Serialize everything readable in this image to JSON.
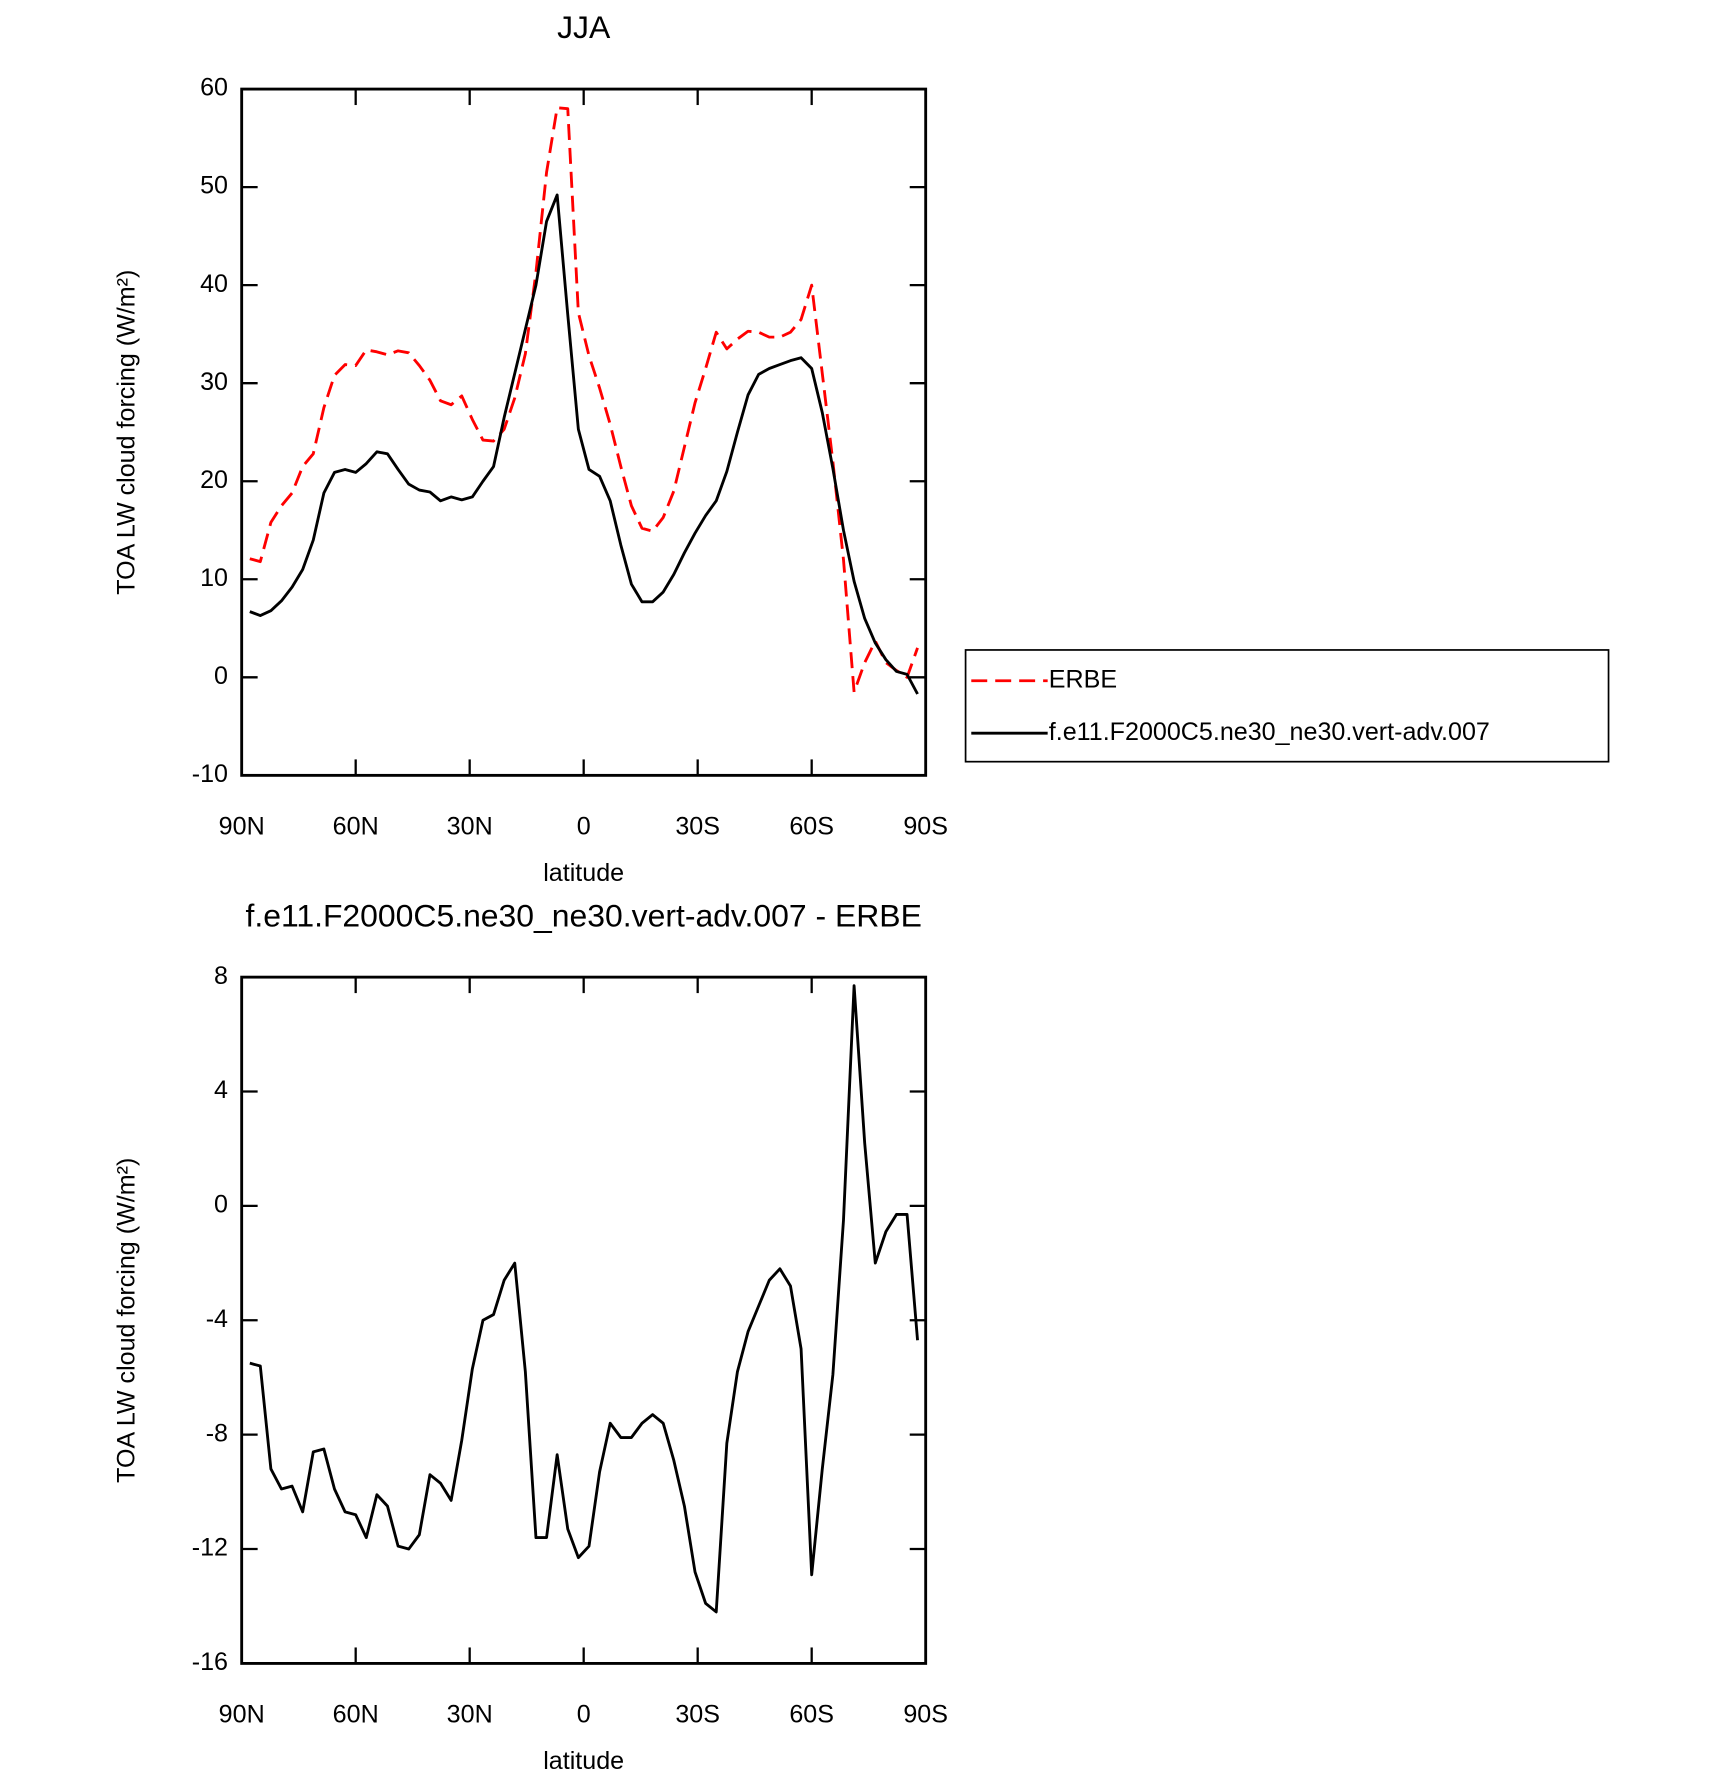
{
  "chart_data": [
    {
      "type": "line",
      "title": "JJA",
      "xlabel": "latitude",
      "ylabel": "TOA LW cloud forcing (W/m²)",
      "x": [
        87.86,
        85.1,
        82.31,
        79.53,
        76.74,
        73.95,
        71.16,
        68.37,
        65.58,
        62.79,
        60.0,
        57.21,
        54.42,
        51.63,
        48.84,
        46.04,
        43.25,
        40.46,
        37.67,
        34.88,
        32.09,
        29.3,
        26.51,
        23.72,
        20.93,
        18.14,
        15.35,
        12.56,
        9.77,
        6.98,
        4.19,
        1.4,
        -1.4,
        -4.19,
        -6.98,
        -9.77,
        -12.56,
        -15.35,
        -18.14,
        -20.93,
        -23.72,
        -26.51,
        -29.3,
        -32.09,
        -34.88,
        -37.67,
        -40.46,
        -43.25,
        -46.04,
        -48.84,
        -51.63,
        -54.42,
        -57.21,
        -60.0,
        -62.79,
        -65.58,
        -68.37,
        -71.16,
        -73.95,
        -76.74,
        -79.53,
        -82.31,
        -85.1,
        -87.86
      ],
      "series": [
        {
          "name": "ERBE",
          "color": "#ff0000",
          "style": "dashed",
          "values": [
            12.1,
            11.8,
            15.8,
            17.5,
            18.8,
            21.5,
            22.8,
            27.5,
            30.8,
            31.9,
            31.8,
            33.4,
            33.2,
            32.9,
            33.3,
            33.1,
            31.8,
            30.3,
            28.2,
            27.8,
            28.7,
            26.3,
            24.2,
            24.1,
            25.3,
            28.5,
            33,
            41.3,
            51.5,
            58.1,
            58,
            37.2,
            32.8,
            29.5,
            25.8,
            21.5,
            17.5,
            15.2,
            14.9,
            16.3,
            19,
            23.5,
            28,
            31.5,
            35.2,
            33.5,
            34.5,
            35.3,
            35.2,
            34.7,
            34.7,
            35.2,
            36.5,
            40,
            31,
            22,
            12,
            -1.5,
            1.5,
            3.7,
            1.5,
            0.7,
            0.0,
            3.0
          ]
        },
        {
          "name": "f.e11.F2000C5.ne30_ne30.vert-adv.007",
          "color": "#000000",
          "style": "solid",
          "values": [
            6.7,
            6.3,
            6.8,
            7.8,
            9.2,
            11,
            14,
            18.8,
            20.9,
            21.2,
            20.9,
            21.8,
            23.0,
            22.8,
            21.2,
            19.7,
            19.1,
            18.9,
            18.0,
            18.4,
            18.1,
            18.4,
            20.0,
            21.5,
            26.5,
            31,
            35.5,
            40,
            46.5,
            49.2,
            37,
            25.3,
            21.2,
            20.5,
            18,
            13.5,
            9.5,
            7.7,
            7.7,
            8.7,
            10.5,
            12.7,
            14.7,
            16.5,
            18,
            21,
            25,
            28.8,
            30.9,
            31.5,
            31.9,
            32.3,
            32.6,
            31.5,
            27,
            21.3,
            15,
            9.8,
            6,
            3.5,
            1.8,
            0.6,
            0.3,
            -1.7
          ]
        }
      ],
      "xlim": [
        90,
        -90
      ],
      "xticks": [
        {
          "value": 90,
          "label": "90N"
        },
        {
          "value": 60,
          "label": "60N"
        },
        {
          "value": 30,
          "label": "30N"
        },
        0,
        {
          "value": -30,
          "label": "30S"
        },
        {
          "value": -60,
          "label": "60S"
        },
        {
          "value": -90,
          "label": "90S"
        }
      ],
      "ylim": [
        -10,
        60
      ],
      "yticks": [
        -10,
        0,
        10,
        20,
        30,
        40,
        50,
        60
      ],
      "legend": "outside-right"
    },
    {
      "type": "line",
      "title": "f.e11.F2000C5.ne30_ne30.vert-adv.007 - ERBE",
      "xlabel": "latitude",
      "ylabel": "TOA LW cloud forcing (W/m²)",
      "x": [
        87.86,
        85.1,
        82.31,
        79.53,
        76.74,
        73.95,
        71.16,
        68.37,
        65.58,
        62.79,
        60.0,
        57.21,
        54.42,
        51.63,
        48.84,
        46.04,
        43.25,
        40.46,
        37.67,
        34.88,
        32.09,
        29.3,
        26.51,
        23.72,
        20.93,
        18.14,
        15.35,
        12.56,
        9.77,
        6.98,
        4.19,
        1.4,
        -1.4,
        -4.19,
        -6.98,
        -9.77,
        -12.56,
        -15.35,
        -18.14,
        -20.93,
        -23.72,
        -26.51,
        -29.3,
        -32.09,
        -34.88,
        -37.67,
        -40.46,
        -43.25,
        -46.04,
        -48.84,
        -51.63,
        -54.42,
        -57.21,
        -60.0,
        -62.79,
        -65.58,
        -68.37,
        -71.16,
        -73.95,
        -76.74,
        -79.53,
        -82.31,
        -85.1,
        -87.86
      ],
      "series": [
        {
          "color": "#000000",
          "style": "solid",
          "values": [
            -5.5,
            -5.6,
            -9.2,
            -9.9,
            -9.8,
            -10.7,
            -8.6,
            -8.5,
            -9.9,
            -10.7,
            -10.8,
            -11.6,
            -10.1,
            -10.5,
            -11.9,
            -12.0,
            -11.5,
            -9.4,
            -9.7,
            -10.3,
            -8.2,
            -5.7,
            -4.0,
            -3.8,
            -2.6,
            -2.0,
            -5.8,
            -11.6,
            -11.6,
            -8.7,
            -11.3,
            -12.3,
            -11.9,
            -9.3,
            -7.6,
            -8.1,
            -8.1,
            -7.6,
            -7.3,
            -7.6,
            -8.9,
            -10.5,
            -12.8,
            -13.9,
            -14.2,
            -8.3,
            -5.8,
            -4.4,
            -3.5,
            -2.6,
            -2.2,
            -2.8,
            -5.0,
            -12.9,
            -9.2,
            -5.9,
            -0.5,
            7.7,
            2.2,
            -2.0,
            -0.9,
            -0.3,
            -0.3,
            -4.7
          ]
        }
      ],
      "xlim": [
        90,
        -90
      ],
      "xticks": [
        {
          "value": 90,
          "label": "90N"
        },
        {
          "value": 60,
          "label": "60N"
        },
        {
          "value": 30,
          "label": "30N"
        },
        0,
        {
          "value": -30,
          "label": "30S"
        },
        {
          "value": -60,
          "label": "60S"
        },
        {
          "value": -90,
          "label": "90S"
        }
      ],
      "ylim": [
        -16,
        8
      ],
      "yticks": [
        -16,
        -12,
        -8,
        -4,
        0,
        4,
        8
      ]
    }
  ]
}
